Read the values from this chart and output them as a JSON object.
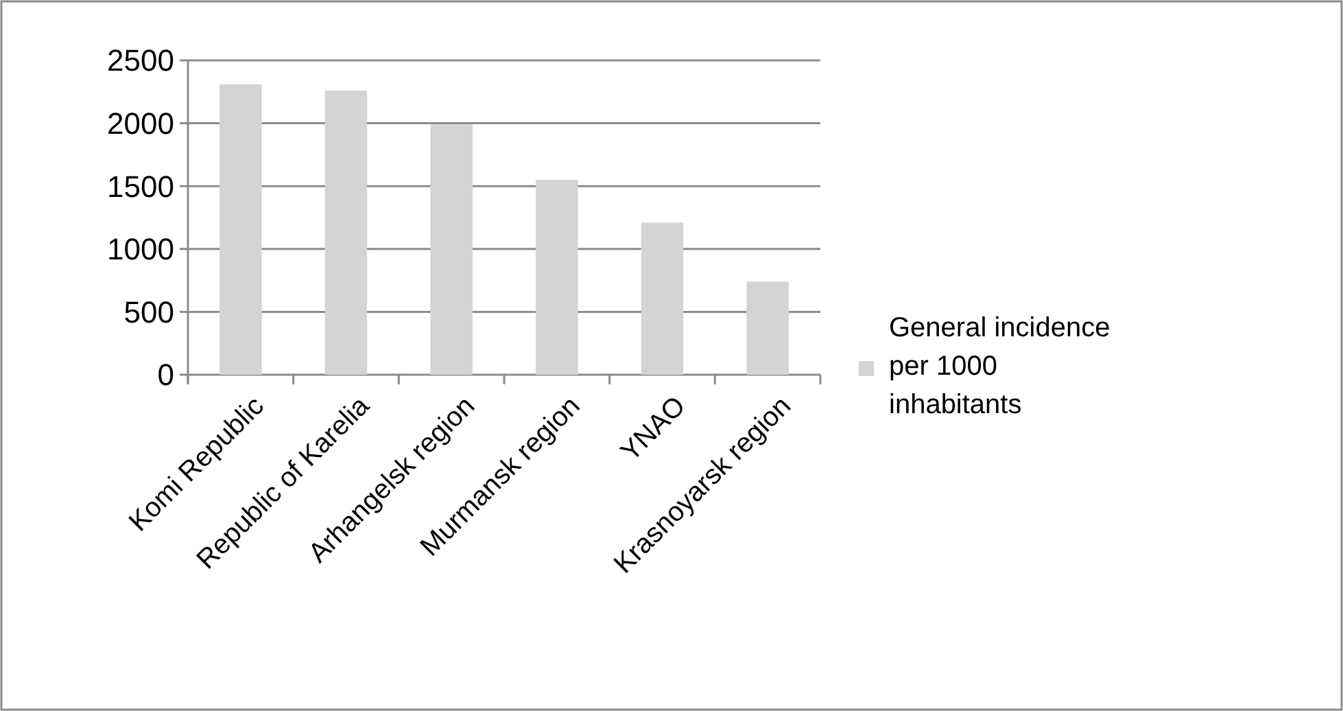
{
  "chart_data": {
    "type": "bar",
    "categories": [
      "Komi Republic",
      "Republic of Karelia",
      "Arhangelsk region",
      "Murmansk region",
      "YNAO",
      "Krasnoyarsk region"
    ],
    "series": [
      {
        "name": "General incidence per 1000 inhabitants",
        "color": "#d4d4d4",
        "values": [
          2310,
          2260,
          1990,
          1550,
          1210,
          740
        ]
      }
    ],
    "ylim": [
      0,
      2500
    ],
    "yticks": [
      0,
      500,
      1000,
      1500,
      2000,
      2500
    ],
    "grid": "y",
    "legend": "right"
  }
}
